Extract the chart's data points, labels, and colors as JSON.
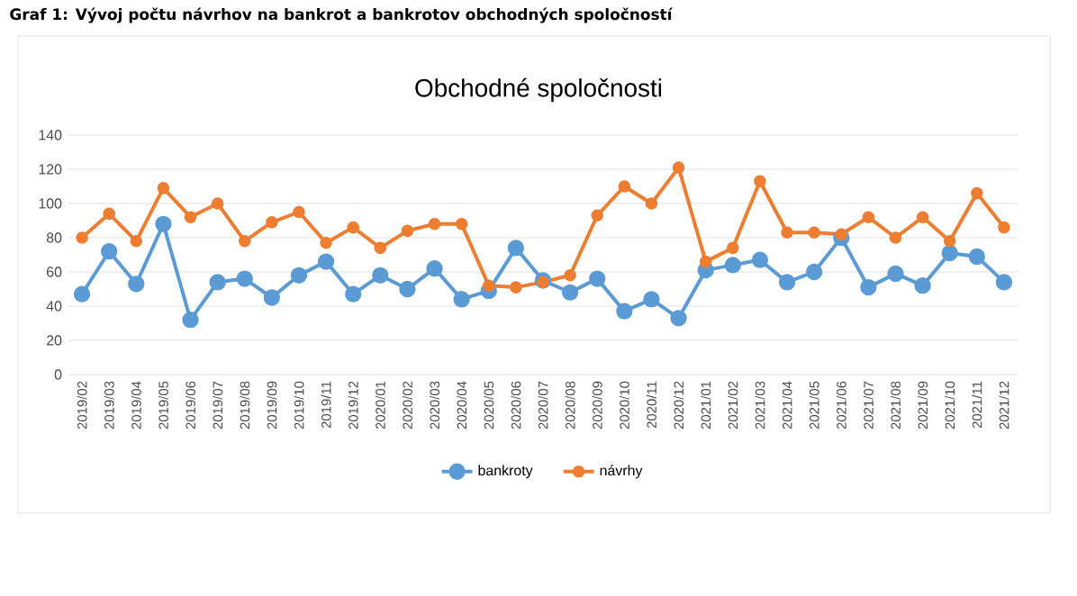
{
  "chart_data": {
    "type": "line",
    "title": "Graf 1: Vývoj počtu návrhov na bankrot a bankrotov obchodných spoločností",
    "subtitle": "Obchodné spoločnosti",
    "categories": [
      "2019/02",
      "2019/03",
      "2019/04",
      "2019/05",
      "2019/06",
      "2019/07",
      "2019/08",
      "2019/09",
      "2019/10",
      "2019/11",
      "2019/12",
      "2020/01",
      "2020/02",
      "2020/03",
      "2020/04",
      "2020/05",
      "2020/06",
      "2020/07",
      "2020/08",
      "2020/09",
      "2020/10",
      "2020/11",
      "2020/12",
      "2021/01",
      "2021/02",
      "2021/03",
      "2021/04",
      "2021/05",
      "2021/06",
      "2021/07",
      "2021/08",
      "2021/09",
      "2021/10",
      "2021/11",
      "2021/12"
    ],
    "series": [
      {
        "name": "bankroty",
        "color": "#5b9bd5",
        "values": [
          47,
          72,
          53,
          88,
          32,
          54,
          56,
          45,
          58,
          66,
          47,
          58,
          50,
          62,
          44,
          49,
          74,
          55,
          48,
          56,
          37,
          44,
          33,
          61,
          64,
          67,
          54,
          60,
          80,
          51,
          59,
          52,
          71,
          69,
          54
        ]
      },
      {
        "name": "návrhy",
        "color": "#ed7d31",
        "values": [
          80,
          94,
          78,
          109,
          92,
          100,
          78,
          89,
          95,
          77,
          86,
          74,
          84,
          88,
          88,
          52,
          51,
          54,
          58,
          93,
          110,
          100,
          121,
          66,
          74,
          113,
          83,
          83,
          82,
          92,
          80,
          92,
          78,
          106,
          86
        ]
      }
    ],
    "ylim": [
      0,
      140
    ],
    "yticks": [
      0,
      20,
      40,
      60,
      80,
      100,
      120,
      140
    ],
    "grid": "y",
    "legend": "bottom",
    "marker": "circle",
    "line_style": "solid"
  }
}
